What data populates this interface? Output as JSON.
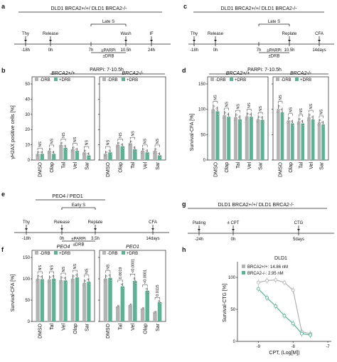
{
  "colors": {
    "gray": "#b3b3b3",
    "green": "#5bb394",
    "dark": "#222222"
  },
  "legend": {
    "drb_neg": "-DRB",
    "drb_pos": "+DRB"
  },
  "panel_a": {
    "letter": "a",
    "title": "DLD1 BRCA2+/+/ DLD1 BRCA2-/-",
    "events": [
      {
        "time": "-18h",
        "label": "Thy"
      },
      {
        "time": "0h",
        "label": "Release"
      },
      {
        "time": "7h",
        "label": ""
      },
      {
        "time": "10.5h",
        "label": "Wash"
      },
      {
        "time": "24h",
        "label": "IF"
      }
    ],
    "window": "Late S",
    "treat1": "±PARPi",
    "treat2": "±DRB"
  },
  "panel_c": {
    "letter": "c",
    "title": "DLD1 BRCA2+/+/ DLD1 BRCA2-/-",
    "events": [
      {
        "time": "-18h",
        "label": "Thy"
      },
      {
        "time": "0h",
        "label": "Release"
      },
      {
        "time": "7h",
        "label": ""
      },
      {
        "time": "10.5h",
        "label": "Replate"
      },
      {
        "time": "14days",
        "label": "CFA"
      }
    ],
    "window": "Late S",
    "treat1": "±PARPi",
    "treat2": "±DRB"
  },
  "panel_e": {
    "letter": "e",
    "title": "PEO4 / PEO1",
    "events": [
      {
        "time": "-18h",
        "label": "Thy"
      },
      {
        "time": "0h",
        "label": "Release"
      },
      {
        "time": "3.5h",
        "label": "Replate"
      },
      {
        "time": "14days",
        "label": "CFA"
      }
    ],
    "window": "Early S",
    "treat1": "±PARPi",
    "treat2": "±DRB"
  },
  "panel_g": {
    "letter": "g",
    "title": "DLD1 BRCA2+/+/ DLD1 BRCA2-/-",
    "events": [
      {
        "time": "-24h",
        "label": "Plating"
      },
      {
        "time": "0h",
        "label": "± CPT"
      },
      {
        "time": "5days",
        "label": "CTG"
      }
    ]
  },
  "panel_b": {
    "letter": "b",
    "header": "PARPi: 7-10.5h",
    "ylabel": "γH2AX positive cells [%]",
    "yticks": [
      "0",
      "10",
      "20",
      "30",
      "40",
      "50"
    ]
  },
  "panel_d": {
    "letter": "d",
    "header": "PARPi: 7-10.5h",
    "ylabel": "Survival-CFA [%]",
    "yticks": [
      "0",
      "50",
      "100",
      "150"
    ]
  },
  "panel_f": {
    "letter": "f",
    "ylabel": "Survival-CFA [%]",
    "yticks": [
      "0",
      "50",
      "100",
      "150"
    ]
  },
  "panel_h": {
    "letter": "h",
    "title": "DLD1",
    "ylabel": "Survival-CTG [%]",
    "xlabel": "CPT, (Log[M])",
    "yticks": [
      "0",
      "50",
      "100"
    ],
    "xticks": [
      "-9",
      "-8",
      "-7"
    ],
    "legend_plus": "BRCA2+/+: 14.86 nM",
    "legend_minus": "BRCA2-/-: 2.95 nM"
  },
  "chart_data": [
    {
      "panel": "b",
      "type": "bar",
      "subtitle": "BRCA2+/+",
      "ylabel": "γH2AX positive cells [%]",
      "ylim": [
        0,
        50
      ],
      "categories": [
        "DMSO",
        "Olap",
        "Tal",
        "Vel",
        "Sar"
      ],
      "series": [
        {
          "name": "-DRB",
          "values": [
            4,
            6,
            10,
            7,
            5
          ]
        },
        {
          "name": "+DRB",
          "values": [
            4,
            4,
            8,
            6,
            3
          ]
        }
      ],
      "annotations": [
        "NS",
        "NS",
        "NS",
        "NS",
        "NS"
      ]
    },
    {
      "panel": "b",
      "type": "bar",
      "subtitle": "BRCA2-/-",
      "ylabel": "γH2AX positive cells [%]",
      "ylim": [
        0,
        50
      ],
      "categories": [
        "DMSO",
        "Olap",
        "Tal",
        "Vel",
        "Sar"
      ],
      "series": [
        {
          "name": "-DRB",
          "values": [
            4,
            10,
            11,
            6,
            6
          ]
        },
        {
          "name": "+DRB",
          "values": [
            5,
            9,
            7,
            5,
            3
          ]
        }
      ],
      "annotations": [
        "NS",
        "NS",
        "NS",
        "NS",
        "NS"
      ]
    },
    {
      "panel": "d",
      "type": "bar",
      "subtitle": "BRCA2+/+",
      "ylabel": "Survival-CFA [%]",
      "ylim": [
        0,
        150
      ],
      "categories": [
        "DMSO",
        "Olap",
        "Tal",
        "Vel",
        "Sar"
      ],
      "series": [
        {
          "name": "-DRB",
          "values": [
            100,
            88,
            84,
            86,
            80
          ]
        },
        {
          "name": "+DRB",
          "values": [
            96,
            85,
            80,
            85,
            79
          ]
        }
      ],
      "annotations": [
        "NS",
        "NS",
        "NS",
        "NS",
        "NS"
      ]
    },
    {
      "panel": "d",
      "type": "bar",
      "subtitle": "BRCA2-/-",
      "ylabel": "Survival-CFA [%]",
      "ylim": [
        0,
        150
      ],
      "categories": [
        "DMSO",
        "Olap",
        "Tal",
        "Vel",
        "Sar"
      ],
      "series": [
        {
          "name": "-DRB",
          "values": [
            100,
            78,
            76,
            84,
            74
          ]
        },
        {
          "name": "+DRB",
          "values": [
            94,
            72,
            72,
            80,
            70
          ]
        }
      ],
      "annotations": [
        "NS",
        "NS",
        "NS",
        "NS",
        "NS"
      ]
    },
    {
      "panel": "f",
      "type": "bar",
      "subtitle": "PEO4",
      "ylabel": "Survival-CFA [%]",
      "ylim": [
        0,
        150
      ],
      "categories": [
        "DMSO",
        "Tal",
        "Vel",
        "Olap",
        "Sar"
      ],
      "series": [
        {
          "name": "-DRB",
          "values": [
            100,
            98,
            97,
            100,
            90
          ]
        },
        {
          "name": "+DRB",
          "values": [
            99,
            100,
            96,
            103,
            93
          ]
        }
      ],
      "annotations": [
        "NS",
        "NS",
        "NS",
        "NS",
        "NS"
      ]
    },
    {
      "panel": "f",
      "type": "bar",
      "subtitle": "PEO1",
      "ylabel": "Survival-CFA [%]",
      "ylim": [
        0,
        150
      ],
      "categories": [
        "DMSO",
        "Tal",
        "Vel",
        "Olap",
        "Sar"
      ],
      "series": [
        {
          "name": "-DRB",
          "values": [
            100,
            35,
            38,
            30,
            22
          ]
        },
        {
          "name": "+DRB",
          "values": [
            102,
            82,
            95,
            72,
            45
          ]
        }
      ],
      "annotations": [
        "NS",
        "0.0019",
        "<0.0001",
        "<0.0001",
        "0.0115"
      ]
    },
    {
      "panel": "h",
      "type": "line",
      "title": "DLD1",
      "xlabel": "CPT, (Log[M])",
      "ylabel": "Survival-CTG [%]",
      "xlim": [
        -9.6,
        -6.9
      ],
      "ylim": [
        0,
        120
      ],
      "series": [
        {
          "name": "BRCA2+/+: 14.86 nM",
          "x": [
            -9,
            -8.75,
            -8.5,
            -8.25,
            -8,
            -7.75,
            -7.5
          ],
          "y": [
            92,
            95,
            96,
            92,
            80,
            15,
            12
          ]
        },
        {
          "name": "BRCA2-/-: 2.95 nM",
          "x": [
            -9,
            -8.75,
            -8.5,
            -8.25,
            -8,
            -7.75,
            -7.5
          ],
          "y": [
            82,
            68,
            55,
            40,
            28,
            12,
            10
          ]
        }
      ]
    }
  ]
}
